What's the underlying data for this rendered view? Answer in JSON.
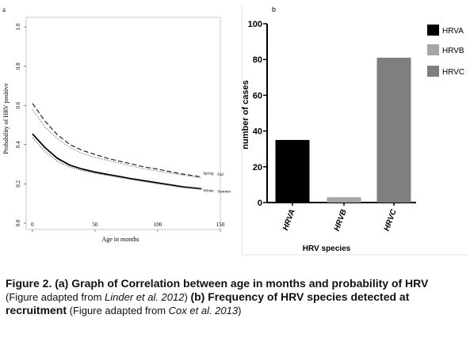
{
  "chart_data": [
    {
      "type": "line",
      "panel_label": "a",
      "xlabel": "Age in months",
      "ylabel": "Probability of HRV positive",
      "xlim": [
        -5,
        150
      ],
      "ylim": [
        0.0,
        1.0
      ],
      "x_ticks": [
        0,
        50,
        100,
        150
      ],
      "y_ticks": [
        0.0,
        0.2,
        0.4,
        0.6,
        0.8,
        1.0
      ],
      "x_tick_labels": [
        "0",
        "50",
        "100",
        "150"
      ],
      "y_tick_labels": [
        "0.0",
        "0.2",
        "0.4",
        "0.6",
        "0.8",
        "1.0"
      ],
      "grid": false,
      "series": [
        {
          "name": "Spring",
          "style": "dashed",
          "color": "#222222",
          "x": [
            0,
            10,
            20,
            30,
            40,
            50,
            60,
            70,
            80,
            90,
            100,
            110,
            120,
            135
          ],
          "y": [
            0.61,
            0.52,
            0.45,
            0.4,
            0.37,
            0.35,
            0.33,
            0.315,
            0.3,
            0.285,
            0.275,
            0.262,
            0.25,
            0.235
          ]
        },
        {
          "name": "Fall",
          "style": "dotted",
          "color": "#888888",
          "x": [
            0,
            10,
            20,
            30,
            40,
            50,
            60,
            70,
            80,
            90,
            100,
            110,
            120,
            135
          ],
          "y": [
            0.58,
            0.49,
            0.43,
            0.385,
            0.355,
            0.335,
            0.32,
            0.305,
            0.29,
            0.275,
            0.265,
            0.255,
            0.245,
            0.23
          ]
        },
        {
          "name": "Winter",
          "style": "solid",
          "color": "#000000",
          "x": [
            0,
            10,
            20,
            30,
            40,
            50,
            60,
            70,
            80,
            90,
            100,
            110,
            120,
            135
          ],
          "y": [
            0.455,
            0.385,
            0.33,
            0.295,
            0.275,
            0.26,
            0.248,
            0.237,
            0.225,
            0.215,
            0.205,
            0.195,
            0.185,
            0.175
          ]
        },
        {
          "name": "Summer",
          "style": "dotted",
          "color": "#777777",
          "x": [
            0,
            10,
            20,
            30,
            40,
            50,
            60,
            70,
            80,
            90,
            100,
            110,
            120,
            135
          ],
          "y": [
            0.435,
            0.365,
            0.315,
            0.285,
            0.268,
            0.254,
            0.243,
            0.232,
            0.221,
            0.211,
            0.201,
            0.191,
            0.181,
            0.172
          ]
        }
      ],
      "line_labels": [
        {
          "text": "Spring",
          "series": "Spring"
        },
        {
          "text": "Fall",
          "series": "Fall"
        },
        {
          "text": "Winter",
          "series": "Winter"
        },
        {
          "text": "Summer",
          "series": "Summer"
        }
      ]
    },
    {
      "type": "bar",
      "panel_label": "b",
      "xlabel": "HRV species",
      "ylabel": "number of cases",
      "ylim": [
        0,
        100
      ],
      "y_ticks": [
        0,
        20,
        40,
        60,
        80,
        100
      ],
      "y_tick_labels": [
        "0",
        "20",
        "40",
        "60",
        "80",
        "100"
      ],
      "categories": [
        "HRVA",
        "HRVB",
        "HRVC"
      ],
      "values": [
        35,
        3,
        81
      ],
      "colors": [
        "#000000",
        "#a6a6a6",
        "#7f7f7f"
      ],
      "legend": {
        "placement": "right",
        "entries": [
          "HRVA",
          "HRVB",
          "HRVC"
        ]
      }
    }
  ],
  "caption": {
    "bold_a": "Figure 2. (a) Graph of Correlation between age in months and probability of HRV",
    "plain_1": "(Figure adapted from ",
    "italic_1": "Linder et al. 2012",
    "plain_2": ") ",
    "bold_b": "(b) Frequency of HRV species detected at recruitment",
    "plain_3": " (Figure adapted from ",
    "italic_2": "Cox et al. 2013",
    "plain_4": ")"
  }
}
